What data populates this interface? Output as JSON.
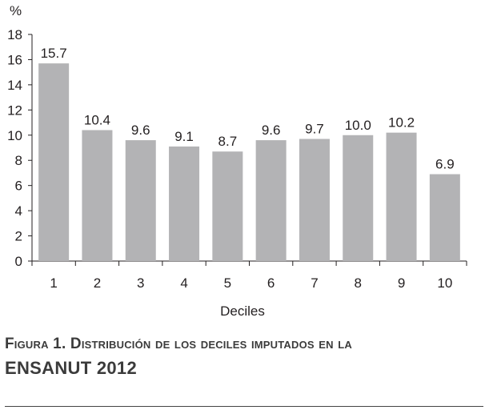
{
  "chart_data": {
    "type": "bar",
    "categories": [
      "1",
      "2",
      "3",
      "4",
      "5",
      "6",
      "7",
      "8",
      "9",
      "10"
    ],
    "values": [
      15.7,
      10.4,
      9.6,
      9.1,
      8.7,
      9.6,
      9.7,
      10.0,
      10.2,
      6.9
    ],
    "value_labels": [
      "15.7",
      "10.4",
      "9.6",
      "9.1",
      "8.7",
      "9.6",
      "9.7",
      "10.0",
      "10.2",
      "6.9"
    ],
    "y_ticks": [
      0,
      2,
      4,
      6,
      8,
      10,
      12,
      14,
      16,
      18
    ],
    "ylim": [
      0,
      18
    ],
    "ylabel": "%",
    "xlabel": "Deciles",
    "bar_color": "#b3b3b5",
    "grid": false,
    "legend": "none"
  },
  "caption": {
    "line1": "Figura 1. Distribución de los deciles imputados en la",
    "line2": "ENSANUT 2012"
  }
}
